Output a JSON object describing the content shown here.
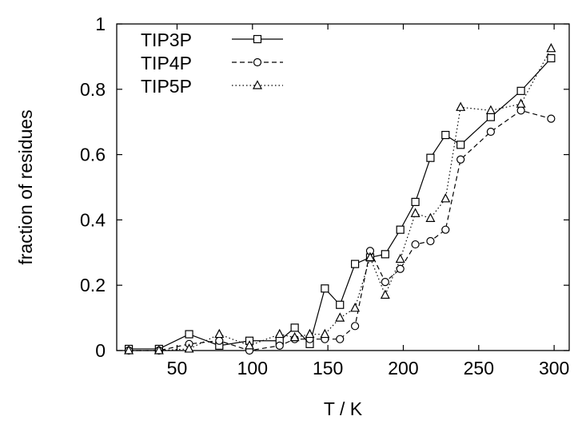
{
  "chart_data": {
    "type": "line",
    "title": "",
    "xlabel": "T / K",
    "ylabel": "fraction of residues",
    "xlim": [
      10,
      310
    ],
    "ylim": [
      0,
      1
    ],
    "xticks": [
      50,
      100,
      150,
      200,
      250,
      300
    ],
    "yticks": [
      0,
      0.2,
      0.4,
      0.6,
      0.8,
      1
    ],
    "xtick_labels": [
      "50",
      "100",
      "150",
      "200",
      "250",
      "300"
    ],
    "ytick_labels": [
      "0",
      "0.2",
      "0.4",
      "0.6",
      "0.8",
      "1"
    ],
    "grid": false,
    "legend_position": "top-left",
    "series": [
      {
        "name": "TIP3P",
        "line_style": "solid",
        "marker": "square",
        "x": [
          18,
          38,
          58,
          78,
          98,
          118,
          128,
          138,
          148,
          158,
          168,
          178,
          188,
          198,
          208,
          218,
          228,
          238,
          258,
          278,
          298
        ],
        "y": [
          0.005,
          0.005,
          0.05,
          0.015,
          0.03,
          0.03,
          0.07,
          0.02,
          0.19,
          0.14,
          0.265,
          0.285,
          0.295,
          0.37,
          0.455,
          0.59,
          0.66,
          0.63,
          0.715,
          0.795,
          0.895
        ]
      },
      {
        "name": "TIP4P",
        "line_style": "dashed",
        "marker": "circle",
        "x": [
          18,
          38,
          58,
          78,
          98,
          118,
          128,
          138,
          148,
          158,
          168,
          178,
          188,
          198,
          208,
          218,
          228,
          238,
          258,
          278,
          298
        ],
        "y": [
          0.0,
          0.0,
          0.02,
          0.03,
          0.0,
          0.015,
          0.035,
          0.035,
          0.035,
          0.035,
          0.075,
          0.305,
          0.21,
          0.25,
          0.325,
          0.335,
          0.37,
          0.585,
          0.67,
          0.735,
          0.71
        ]
      },
      {
        "name": "TIP5P",
        "line_style": "dotted",
        "marker": "triangle",
        "x": [
          18,
          38,
          58,
          78,
          98,
          118,
          128,
          138,
          148,
          158,
          168,
          178,
          188,
          198,
          208,
          218,
          228,
          238,
          258,
          278,
          298
        ],
        "y": [
          0.0,
          0.0,
          0.005,
          0.05,
          0.015,
          0.05,
          0.04,
          0.05,
          0.05,
          0.1,
          0.13,
          0.285,
          0.17,
          0.28,
          0.42,
          0.405,
          0.465,
          0.745,
          0.735,
          0.755,
          0.925
        ]
      }
    ]
  }
}
